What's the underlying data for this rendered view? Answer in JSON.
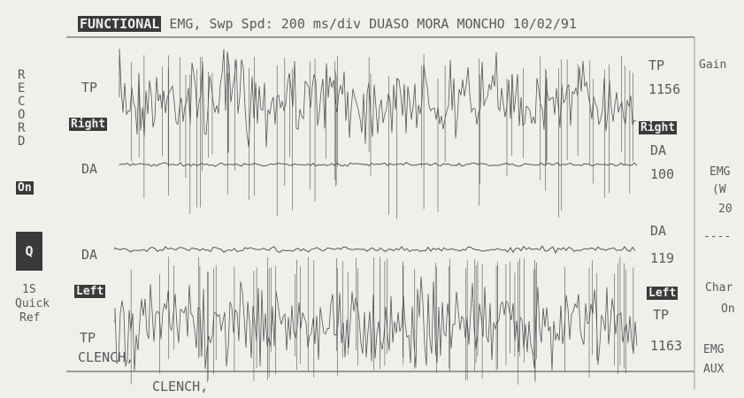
{
  "header": {
    "parts": [
      "FUNCTIONAL",
      "EMG,",
      "Swp Spd: 200 ms/div",
      "DUASO MORA MONCHO",
      "10/02/91"
    ]
  },
  "left_panel": {
    "record": "RECORD",
    "record_state": "On",
    "quick_key": "Q",
    "quick_ref": [
      "1S",
      "Quick",
      "Ref"
    ]
  },
  "channels_left": [
    "TP",
    "Right",
    "DA",
    "DA",
    "Left",
    "TP",
    "CLENCH,"
  ],
  "channels_right": [
    "TP",
    "1156",
    "Right",
    "DA",
    "100",
    "DA",
    "119",
    "Left",
    "TP",
    "1163"
  ],
  "right_panel": [
    "Gain",
    "EMG",
    "(W",
    "20",
    "----",
    "Char",
    "On",
    "EMG",
    "AUX"
  ],
  "footer": {
    "event": "CLENCH,"
  }
}
